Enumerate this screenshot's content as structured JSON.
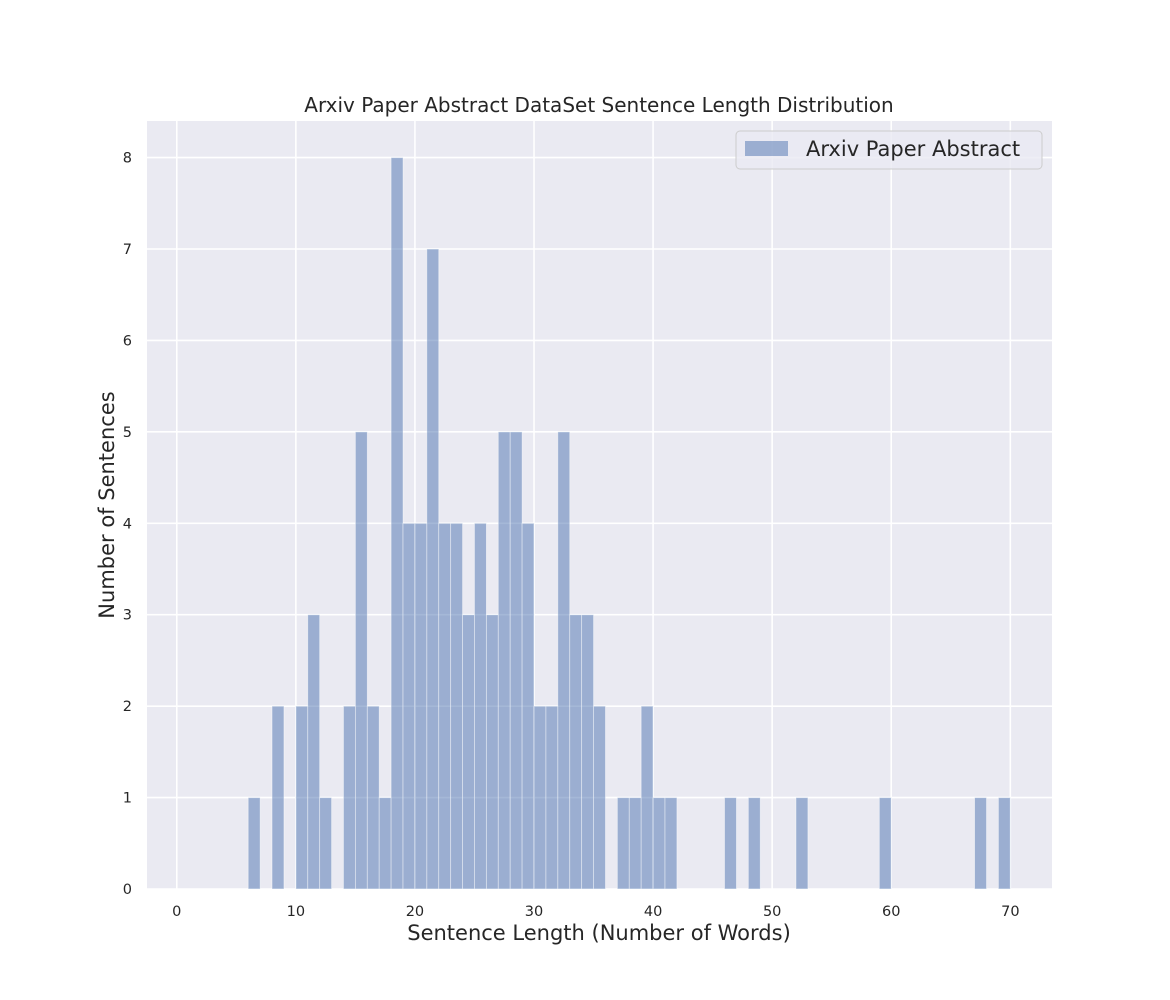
{
  "chart_data": {
    "type": "bar",
    "title": "Arxiv Paper Abstract DataSet Sentence Length Distribution",
    "xlabel": "Sentence Length (Number of Words)",
    "ylabel": "Number of Sentences",
    "xlim": [
      -2.5,
      73.5
    ],
    "ylim": [
      0,
      8.4
    ],
    "xticks": [
      0,
      10,
      20,
      30,
      40,
      50,
      60,
      70
    ],
    "yticks": [
      0,
      1,
      2,
      3,
      4,
      5,
      6,
      7,
      8
    ],
    "grid": true,
    "legend_position": "top-right",
    "bin_width": 1,
    "series": [
      {
        "name": "Arxiv Paper Abstract",
        "color": "#4c72b0",
        "bins": [
          {
            "x": 6,
            "count": 1
          },
          {
            "x": 8,
            "count": 2
          },
          {
            "x": 10,
            "count": 2
          },
          {
            "x": 11,
            "count": 3
          },
          {
            "x": 12,
            "count": 1
          },
          {
            "x": 14,
            "count": 2
          },
          {
            "x": 15,
            "count": 5
          },
          {
            "x": 16,
            "count": 2
          },
          {
            "x": 17,
            "count": 1
          },
          {
            "x": 18,
            "count": 8
          },
          {
            "x": 19,
            "count": 4
          },
          {
            "x": 20,
            "count": 4
          },
          {
            "x": 21,
            "count": 7
          },
          {
            "x": 22,
            "count": 4
          },
          {
            "x": 23,
            "count": 4
          },
          {
            "x": 24,
            "count": 3
          },
          {
            "x": 25,
            "count": 4
          },
          {
            "x": 26,
            "count": 3
          },
          {
            "x": 27,
            "count": 5
          },
          {
            "x": 28,
            "count": 5
          },
          {
            "x": 29,
            "count": 4
          },
          {
            "x": 30,
            "count": 2
          },
          {
            "x": 31,
            "count": 2
          },
          {
            "x": 32,
            "count": 5
          },
          {
            "x": 33,
            "count": 3
          },
          {
            "x": 34,
            "count": 3
          },
          {
            "x": 35,
            "count": 2
          },
          {
            "x": 37,
            "count": 1
          },
          {
            "x": 38,
            "count": 1
          },
          {
            "x": 39,
            "count": 2
          },
          {
            "x": 40,
            "count": 1
          },
          {
            "x": 41,
            "count": 1
          },
          {
            "x": 46,
            "count": 1
          },
          {
            "x": 48,
            "count": 1
          },
          {
            "x": 52,
            "count": 1
          },
          {
            "x": 59,
            "count": 1
          },
          {
            "x": 67,
            "count": 1
          },
          {
            "x": 69,
            "count": 1
          }
        ]
      }
    ]
  }
}
